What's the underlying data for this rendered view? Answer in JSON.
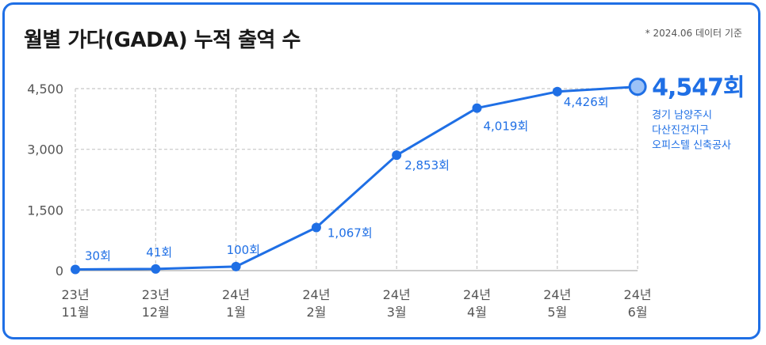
{
  "header": {
    "title": "월별 가다(GADA) 누적 출역 수",
    "note": "* 2024.06 데이터 기준"
  },
  "colors": {
    "accent": "#1f6fe5",
    "grid": "#c8c8c8",
    "text": "#555555"
  },
  "chart_data": {
    "type": "line",
    "title": "월별 가다(GADA) 누적 출역 수",
    "categories": [
      [
        "23년",
        "11월"
      ],
      [
        "23년",
        "12월"
      ],
      [
        "24년",
        "1월"
      ],
      [
        "24년",
        "2월"
      ],
      [
        "24년",
        "3월"
      ],
      [
        "24년",
        "4월"
      ],
      [
        "24년",
        "5월"
      ],
      [
        "24년",
        "6월"
      ]
    ],
    "values": [
      30,
      41,
      100,
      1067,
      2853,
      4019,
      4426,
      4547
    ],
    "labels": [
      "30회",
      "41회",
      "100회",
      "1,067회",
      "2,853회",
      "4,019회",
      "4,426회",
      "4,547회"
    ],
    "yticks": [
      0,
      1500,
      3000,
      4500
    ],
    "ytick_labels": [
      "0",
      "1,500",
      "3,000",
      "4,500"
    ],
    "ylim": [
      0,
      4500
    ],
    "grid": true,
    "final_annotation": [
      "경기 남양주시",
      "다산진건지구",
      "오피스텔 신축공사"
    ]
  }
}
